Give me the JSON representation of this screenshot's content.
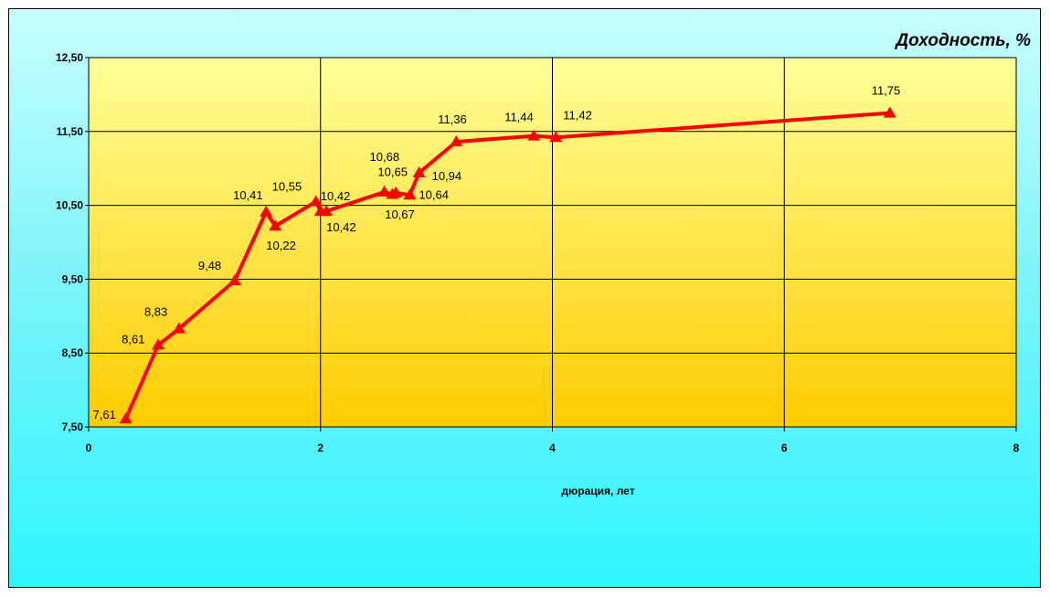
{
  "chart_data": {
    "type": "line",
    "title": "Доходность, %",
    "xlabel": "дюрация, лет",
    "ylabel": "",
    "xlim": [
      0,
      8
    ],
    "ylim": [
      7.5,
      12.5
    ],
    "x_ticks": [
      "0",
      "2",
      "4",
      "6",
      "8"
    ],
    "y_ticks": [
      "7,50",
      "8,50",
      "9,50",
      "10,50",
      "11,50",
      "12,50"
    ],
    "grid": true,
    "legend": "none",
    "line_color": "#ff0000",
    "plot_gradient": [
      "#ffff99",
      "#ffcc00"
    ],
    "series": [
      {
        "points": [
          {
            "x": 0.32,
            "y": 7.61,
            "label": "7,61"
          },
          {
            "x": 0.6,
            "y": 8.61,
            "label": "8,61"
          },
          {
            "x": 0.78,
            "y": 8.83,
            "label": "8,83"
          },
          {
            "x": 1.26,
            "y": 9.48,
            "label": "9,48"
          },
          {
            "x": 1.53,
            "y": 10.41,
            "label": "10,41"
          },
          {
            "x": 1.61,
            "y": 10.22,
            "label": "10,22"
          },
          {
            "x": 1.96,
            "y": 10.55,
            "label": "10,55"
          },
          {
            "x": 2.0,
            "y": 10.42,
            "label": "10,42"
          },
          {
            "x": 2.05,
            "y": 10.42,
            "label": "10,42"
          },
          {
            "x": 2.55,
            "y": 10.68,
            "label": "10,68"
          },
          {
            "x": 2.62,
            "y": 10.65,
            "label": "10,65"
          },
          {
            "x": 2.65,
            "y": 10.67,
            "label": "10,67"
          },
          {
            "x": 2.77,
            "y": 10.64,
            "label": "10,64"
          },
          {
            "x": 2.85,
            "y": 10.94,
            "label": "10,94"
          },
          {
            "x": 3.17,
            "y": 11.36,
            "label": "11,36"
          },
          {
            "x": 3.84,
            "y": 11.44,
            "label": "11,44"
          },
          {
            "x": 4.03,
            "y": 11.42,
            "label": "11,42"
          },
          {
            "x": 6.91,
            "y": 11.75,
            "label": "11,75"
          }
        ]
      }
    ]
  }
}
